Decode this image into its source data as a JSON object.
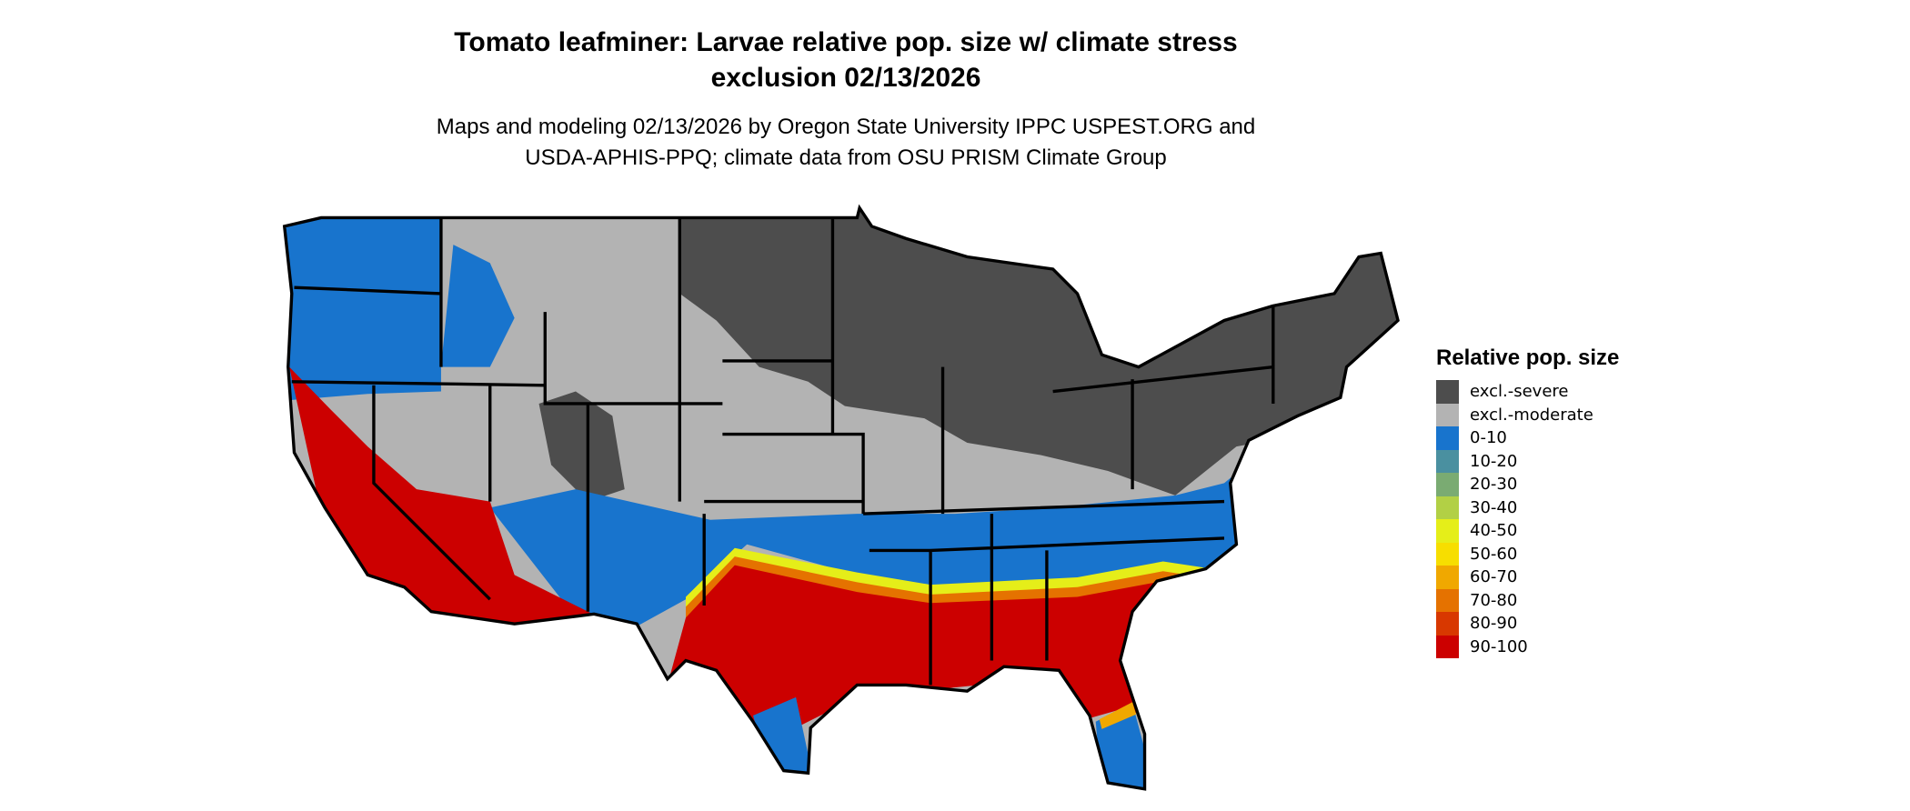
{
  "title_line1": "Tomato leafminer: Larvae relative pop. size w/ climate stress",
  "title_line2": "exclusion 02/13/2026",
  "subtitle_line1": "Maps and modeling 02/13/2026 by Oregon State University IPPC USPEST.ORG and",
  "subtitle_line2": "USDA-APHIS-PPQ; climate data from OSU PRISM Climate Group",
  "legend": {
    "title": "Relative pop. size",
    "items": [
      {
        "label": "excl.-severe",
        "color": "#4d4d4d"
      },
      {
        "label": "excl.-moderate",
        "color": "#b3b3b3"
      },
      {
        "label": "0-10",
        "color": "#1874cd"
      },
      {
        "label": "10-20",
        "color": "#4a90a0"
      },
      {
        "label": "20-30",
        "color": "#7aab72"
      },
      {
        "label": "30-40",
        "color": "#b2d045"
      },
      {
        "label": "40-50",
        "color": "#e5ee19"
      },
      {
        "label": "50-60",
        "color": "#f7de00"
      },
      {
        "label": "60-70",
        "color": "#f0a800"
      },
      {
        "label": "70-80",
        "color": "#e57200"
      },
      {
        "label": "80-90",
        "color": "#d83800"
      },
      {
        "label": "90-100",
        "color": "#cc0000"
      }
    ]
  }
}
